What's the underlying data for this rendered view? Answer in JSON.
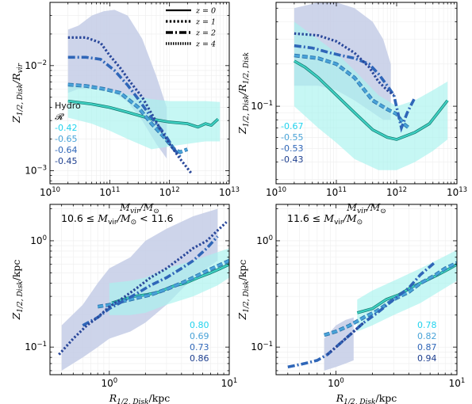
{
  "figure": {
    "colors": {
      "z0": "#3fd1c2",
      "z0_fill": "#a7f3ee",
      "z1": "#29479a",
      "z1_fill": "#c4cde6",
      "z2": "#2f66b8",
      "z4": "#49a3d8"
    }
  },
  "chart_data": [
    {
      "id": "top-left",
      "type": "line",
      "xlabel": "M_vir / M_⊙",
      "ylabel": "Z_1/2,Disk / R_vir",
      "xscale": "log",
      "yscale": "log",
      "xlim": [
        10000000000.0,
        10000000000000.0
      ],
      "ylim": [
        0.00075,
        0.04
      ],
      "xticks": [
        {
          "v": 10000000000.0,
          "label": "10"
        },
        {
          "v": 100000000000.0,
          "label": "11"
        },
        {
          "v": 1000000000000.0,
          "label": "12"
        },
        {
          "v": 10000000000000.0,
          "label": "13"
        }
      ],
      "yticks": [
        {
          "v": 0.001,
          "label": "10",
          "exp": "−3"
        },
        {
          "v": 0.01,
          "label": "10",
          "exp": "−2"
        }
      ],
      "legend": {
        "placement": "top-right",
        "entries": [
          {
            "label": "z = 0",
            "style": "solid"
          },
          {
            "label": "z = 1",
            "style": "dotted"
          },
          {
            "label": "z = 2",
            "style": "dashdot"
          },
          {
            "label": "z = 4",
            "style": "densedot"
          }
        ]
      },
      "annotation": {
        "header": [
          "Hydro",
          "𝓡"
        ],
        "values": [
          {
            "text": "-0.42",
            "color": "#22d3ee"
          },
          {
            "text": "-0.65",
            "color": "#49a3d8"
          },
          {
            "text": "-0.64",
            "color": "#2f66b8"
          },
          {
            "text": "-0.45",
            "color": "#1e3f8f"
          }
        ]
      },
      "bands": [
        {
          "series": "z=1",
          "x": [
            20000000000.0,
            30000000000.0,
            50000000000.0,
            80000000000.0,
            120000000000.0,
            200000000000.0,
            350000000000.0,
            600000000000.0,
            900000000000.0
          ],
          "upper": [
            0.022,
            0.024,
            0.03,
            0.033,
            0.034,
            0.03,
            0.018,
            0.008,
            0.004
          ],
          "lower": [
            0.0055,
            0.006,
            0.006,
            0.0058,
            0.0055,
            0.0045,
            0.003,
            0.0018,
            0.0013
          ]
        },
        {
          "series": "z=0",
          "x": [
            20000000000.0,
            50000000000.0,
            100000000000.0,
            200000000000.0,
            500000000000.0,
            1000000000000.0,
            2000000000000.0,
            4000000000000.0,
            7000000000000.0
          ],
          "upper": [
            0.0065,
            0.0062,
            0.0058,
            0.0053,
            0.0048,
            0.0046,
            0.0046,
            0.0046,
            0.0045
          ],
          "lower": [
            0.0032,
            0.0028,
            0.0024,
            0.002,
            0.0016,
            0.0017,
            0.0018,
            0.0019,
            0.0019
          ]
        }
      ],
      "series": [
        {
          "name": "z=0",
          "style": "solid",
          "color": "#3fd1c2",
          "x": [
            20000000000.0,
            50000000000.0,
            100000000000.0,
            200000000000.0,
            500000000000.0,
            1000000000000.0,
            2000000000000.0,
            3000000000000.0,
            4000000000000.0,
            5000000000000.0,
            6500000000000.0
          ],
          "y": [
            0.0046,
            0.0043,
            0.004,
            0.0036,
            0.0031,
            0.0029,
            0.0028,
            0.0026,
            0.0028,
            0.0027,
            0.0031
          ]
        },
        {
          "name": "z=4",
          "style": "densedot",
          "color": "#49a3d8",
          "x": [
            20000000000.0,
            40000000000.0,
            80000000000.0,
            150000000000.0,
            300000000000.0,
            500000000000.0,
            800000000000.0,
            1200000000000.0,
            1500000000000.0,
            2000000000000.0
          ],
          "y": [
            0.0066,
            0.0064,
            0.006,
            0.0055,
            0.004,
            0.0028,
            0.0021,
            0.0016,
            0.0015,
            0.0016
          ]
        },
        {
          "name": "z=2",
          "style": "dashdot",
          "color": "#2f66b8",
          "x": [
            20000000000.0,
            40000000000.0,
            70000000000.0,
            120000000000.0,
            200000000000.0,
            300000000000.0,
            500000000000.0,
            800000000000.0,
            1200000000000.0,
            1600000000000.0
          ],
          "y": [
            0.012,
            0.012,
            0.0115,
            0.009,
            0.0065,
            0.0048,
            0.0032,
            0.0023,
            0.0016,
            0.0013
          ]
        },
        {
          "name": "z=1",
          "style": "dotted",
          "color": "#29479a",
          "x": [
            20000000000.0,
            40000000000.0,
            70000000000.0,
            100000000000.0,
            150000000000.0,
            220000000000.0,
            350000000000.0,
            500000000000.0,
            700000000000.0,
            1000000000000.0,
            1500000000000.0,
            2300000000000.0
          ],
          "y": [
            0.0185,
            0.0185,
            0.0165,
            0.0125,
            0.0095,
            0.007,
            0.005,
            0.0035,
            0.0025,
            0.0018,
            0.0013,
            0.00095
          ]
        }
      ]
    },
    {
      "id": "top-right",
      "type": "line",
      "xlabel": "M_vir / M_⊙",
      "ylabel": "Z_1/2,Disk / R_1/2,Disk",
      "xscale": "log",
      "yscale": "log",
      "xlim": [
        10000000000.0,
        10000000000000.0
      ],
      "ylim": [
        0.028,
        0.55
      ],
      "xticks": [
        {
          "v": 10000000000.0,
          "label": "10"
        },
        {
          "v": 100000000000.0,
          "label": "11"
        },
        {
          "v": 1000000000000.0,
          "label": "12"
        },
        {
          "v": 10000000000000.0,
          "label": "13"
        }
      ],
      "yticks": [
        {
          "v": 0.1,
          "label": "10",
          "exp": "−1"
        }
      ],
      "annotation": {
        "header": [],
        "values": [
          {
            "text": "-0.67",
            "color": "#22d3ee"
          },
          {
            "text": "-0.55",
            "color": "#49a3d8"
          },
          {
            "text": "-0.53",
            "color": "#2f66b8"
          },
          {
            "text": "-0.43",
            "color": "#1e3f8f"
          }
        ]
      },
      "bands": [
        {
          "series": "z=1",
          "x": [
            20000000000.0,
            50000000000.0,
            100000000000.0,
            200000000000.0,
            400000000000.0,
            600000000000.0,
            800000000000.0
          ],
          "upper": [
            0.5,
            0.55,
            0.55,
            0.5,
            0.4,
            0.3,
            0.2
          ],
          "lower": [
            0.14,
            0.14,
            0.13,
            0.11,
            0.09,
            0.08,
            0.08
          ]
        },
        {
          "series": "z=0",
          "x": [
            20000000000.0,
            50000000000.0,
            100000000000.0,
            200000000000.0,
            500000000000.0,
            1000000000000.0,
            2000000000000.0,
            4000000000000.0,
            7000000000000.0
          ],
          "upper": [
            0.4,
            0.3,
            0.24,
            0.18,
            0.12,
            0.1,
            0.11,
            0.13,
            0.15
          ],
          "lower": [
            0.1,
            0.07,
            0.055,
            0.042,
            0.035,
            0.035,
            0.04,
            0.048,
            0.058
          ]
        }
      ],
      "series": [
        {
          "name": "z=0",
          "style": "solid",
          "color": "#3fd1c2",
          "x": [
            20000000000.0,
            30000000000.0,
            50000000000.0,
            100000000000.0,
            200000000000.0,
            400000000000.0,
            700000000000.0,
            1000000000000.0,
            2000000000000.0,
            3500000000000.0,
            7000000000000.0
          ],
          "y": [
            0.21,
            0.19,
            0.16,
            0.12,
            0.09,
            0.068,
            0.06,
            0.058,
            0.065,
            0.075,
            0.11
          ]
        },
        {
          "name": "z=4",
          "style": "densedot",
          "color": "#49a3d8",
          "x": [
            20000000000.0,
            50000000000.0,
            100000000000.0,
            200000000000.0,
            400000000000.0,
            700000000000.0,
            1000000000000.0,
            1300000000000.0,
            1600000000000.0
          ],
          "y": [
            0.23,
            0.22,
            0.2,
            0.16,
            0.11,
            0.095,
            0.088,
            0.075,
            0.07
          ]
        },
        {
          "name": "z=2",
          "style": "dashdot",
          "color": "#2f66b8",
          "x": [
            20000000000.0,
            40000000000.0,
            80000000000.0,
            120000000000.0,
            200000000000.0,
            350000000000.0,
            500000000000.0,
            700000000000.0,
            900000000000.0,
            1200000000000.0,
            1500000000000.0,
            2000000000000.0
          ],
          "y": [
            0.27,
            0.26,
            0.24,
            0.23,
            0.22,
            0.2,
            0.17,
            0.14,
            0.12,
            0.07,
            0.09,
            0.115
          ]
        },
        {
          "name": "z=1",
          "style": "dotted",
          "color": "#29479a",
          "x": [
            20000000000.0,
            50000000000.0,
            100000000000.0,
            200000000000.0,
            350000000000.0,
            500000000000.0,
            700000000000.0,
            900000000000.0
          ],
          "y": [
            0.33,
            0.32,
            0.29,
            0.24,
            0.19,
            0.15,
            0.13,
            0.12
          ]
        }
      ]
    },
    {
      "id": "bottom-left",
      "type": "line",
      "title": "10.6 ≤ M_vir/M_⊙ < 11.6",
      "xlabel": "R_1/2,Disk / kpc",
      "ylabel": "Z_1/2,Disk / kpc",
      "xscale": "log",
      "yscale": "log",
      "xlim": [
        0.32,
        10
      ],
      "ylim": [
        0.055,
        2.2
      ],
      "xticks": [
        {
          "v": 1,
          "label": "10",
          "exp": "0"
        },
        {
          "v": 10,
          "label": "10",
          "exp": "1"
        }
      ],
      "yticks": [
        {
          "v": 0.1,
          "label": "10",
          "exp": "−1"
        },
        {
          "v": 1,
          "label": "10",
          "exp": "0"
        }
      ],
      "annotation": {
        "header": [],
        "values": [
          {
            "text": "0.80",
            "color": "#22d3ee"
          },
          {
            "text": "0.69",
            "color": "#49a3d8"
          },
          {
            "text": "0.73",
            "color": "#2f66b8"
          },
          {
            "text": "0.86",
            "color": "#1e3f8f"
          }
        ]
      },
      "bands": [
        {
          "series": "z=1",
          "x": [
            0.4,
            0.6,
            0.8,
            1,
            1.5,
            2,
            3,
            5,
            8
          ],
          "upper": [
            0.16,
            0.25,
            0.4,
            0.55,
            0.7,
            1.0,
            1.3,
            1.7,
            2.0
          ],
          "lower": [
            0.06,
            0.08,
            0.1,
            0.12,
            0.14,
            0.17,
            0.25,
            0.45,
            0.65
          ]
        },
        {
          "series": "z=0",
          "x": [
            1,
            1.5,
            2,
            3,
            5,
            8,
            10
          ],
          "upper": [
            0.4,
            0.42,
            0.45,
            0.55,
            0.65,
            0.78,
            0.85
          ],
          "lower": [
            0.2,
            0.2,
            0.21,
            0.25,
            0.3,
            0.38,
            0.45
          ]
        }
      ],
      "series": [
        {
          "name": "z=0",
          "style": "solid",
          "color": "#3fd1c2",
          "x": [
            1.05,
            1.3,
            1.6,
            2,
            2.6,
            3.3,
            4.3,
            5.5,
            7,
            8.5,
            10
          ],
          "y": [
            0.26,
            0.28,
            0.3,
            0.31,
            0.33,
            0.37,
            0.4,
            0.45,
            0.5,
            0.55,
            0.6
          ]
        },
        {
          "name": "z=4",
          "style": "densedot",
          "color": "#49a3d8",
          "x": [
            0.8,
            1.0,
            1.3,
            1.7,
            2.2,
            3,
            4,
            5,
            6.5,
            8,
            10
          ],
          "y": [
            0.24,
            0.25,
            0.27,
            0.29,
            0.31,
            0.35,
            0.4,
            0.45,
            0.52,
            0.58,
            0.65
          ]
        },
        {
          "name": "z=2",
          "style": "dashdot",
          "color": "#2f66b8",
          "x": [
            0.6,
            0.8,
            1,
            1.3,
            1.7,
            2.2,
            3,
            4,
            5,
            6.5,
            8
          ],
          "y": [
            0.16,
            0.19,
            0.23,
            0.27,
            0.32,
            0.38,
            0.45,
            0.55,
            0.65,
            0.85,
            1.1
          ]
        },
        {
          "name": "z=1",
          "style": "dotted",
          "color": "#29479a",
          "x": [
            0.38,
            0.5,
            0.65,
            0.8,
            1,
            1.3,
            1.7,
            2.2,
            3,
            4,
            5,
            6.5,
            8,
            9.5
          ],
          "y": [
            0.085,
            0.12,
            0.16,
            0.19,
            0.24,
            0.29,
            0.36,
            0.45,
            0.55,
            0.7,
            0.85,
            1.0,
            1.25,
            1.5
          ]
        }
      ]
    },
    {
      "id": "bottom-right",
      "type": "line",
      "title": "11.6 ≤ M_vir/M_⊙",
      "xlabel": "R_1/2,Disk / kpc",
      "ylabel": "Z_1/2,Disk / kpc",
      "xscale": "log",
      "yscale": "log",
      "xlim": [
        0.32,
        10
      ],
      "ylim": [
        0.055,
        2.2
      ],
      "xticks": [
        {
          "v": 1,
          "label": "10",
          "exp": "0"
        },
        {
          "v": 10,
          "label": "10",
          "exp": "1"
        }
      ],
      "yticks": [
        {
          "v": 0.1,
          "label": "10",
          "exp": "−1"
        },
        {
          "v": 1,
          "label": "10",
          "exp": "0"
        }
      ],
      "annotation": {
        "header": [],
        "values": [
          {
            "text": "0.78",
            "color": "#22d3ee"
          },
          {
            "text": "0.82",
            "color": "#49a3d8"
          },
          {
            "text": "0.87",
            "color": "#2f66b8"
          },
          {
            "text": "0.94",
            "color": "#1e3f8f"
          }
        ]
      },
      "bands": [
        {
          "series": "z=1",
          "x": [
            0.8,
            1,
            1.2,
            1.4
          ],
          "upper": [
            0.12,
            0.16,
            0.18,
            0.19
          ],
          "lower": [
            0.06,
            0.065,
            0.07,
            0.075
          ]
        },
        {
          "series": "z=0",
          "x": [
            1.5,
            2,
            3,
            5,
            8,
            10
          ],
          "upper": [
            0.28,
            0.34,
            0.42,
            0.55,
            0.72,
            0.82
          ],
          "lower": [
            0.14,
            0.16,
            0.2,
            0.26,
            0.36,
            0.42
          ]
        }
      ],
      "series": [
        {
          "name": "z=0",
          "style": "solid",
          "color": "#3fd1c2",
          "x": [
            1.5,
            2,
            2.6,
            3.3,
            4.3,
            5.5,
            7,
            8.5,
            10
          ],
          "y": [
            0.21,
            0.23,
            0.28,
            0.31,
            0.37,
            0.42,
            0.48,
            0.54,
            0.6
          ]
        },
        {
          "name": "z=4",
          "style": "densedot",
          "color": "#49a3d8",
          "x": [
            0.8,
            1,
            1.3,
            1.7,
            2.2,
            3,
            4,
            5,
            6.5,
            8,
            10
          ],
          "y": [
            0.13,
            0.14,
            0.16,
            0.19,
            0.22,
            0.28,
            0.33,
            0.4,
            0.47,
            0.55,
            0.62
          ]
        },
        {
          "name": "z=2",
          "style": "dashdot",
          "color": "#2f66b8",
          "x": [
            0.4,
            0.55,
            0.7,
            0.85,
            1,
            1.3,
            1.7,
            2.2,
            3,
            4,
            5,
            6.5
          ],
          "y": [
            0.065,
            0.07,
            0.075,
            0.085,
            0.1,
            0.13,
            0.17,
            0.21,
            0.28,
            0.36,
            0.48,
            0.62
          ]
        },
        {
          "name": "z=1",
          "style": "dotted",
          "color": "#29479a",
          "x": [
            0.85,
            1,
            1.2,
            1.4,
            1.7
          ],
          "y": [
            0.085,
            0.1,
            0.12,
            0.14,
            0.17
          ]
        }
      ]
    }
  ]
}
